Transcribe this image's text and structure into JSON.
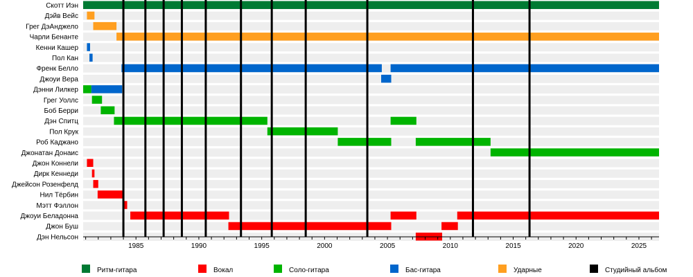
{
  "chart_data": {
    "type": "timeline",
    "title": "",
    "xlabel": "",
    "ylabel": "",
    "xlim": [
      1980.8,
      2026.6
    ],
    "x_ticks": [
      1985,
      1990,
      1995,
      2000,
      2005,
      2010,
      2015,
      2020,
      2025
    ],
    "grid": false,
    "legend_position": "bottom",
    "colors": {
      "rhythm": "#007a33",
      "vocals": "#ff0000",
      "lead": "#00b400",
      "bass": "#0066cc",
      "drums": "#ff9f20",
      "album": "#000000"
    },
    "legend": [
      {
        "key": "rhythm",
        "label": "Ритм-гитара"
      },
      {
        "key": "vocals",
        "label": "Вокал"
      },
      {
        "key": "lead",
        "label": "Соло-гитара"
      },
      {
        "key": "bass",
        "label": "Бас-гитара"
      },
      {
        "key": "drums",
        "label": "Ударные"
      },
      {
        "key": "album",
        "label": "Студийный альбом"
      }
    ],
    "albums": [
      1984.0,
      1985.75,
      1987.2,
      1988.65,
      1990.55,
      1993.35,
      1995.8,
      1998.5,
      2003.4,
      2011.8,
      2016.3
    ],
    "members": [
      {
        "name": "Скотт Иэн",
        "spans": [
          {
            "role": "rhythm",
            "from": 1980.8,
            "to": 2026.6
          }
        ]
      },
      {
        "name": "Дэйв Вейс",
        "spans": [
          {
            "role": "drums",
            "from": 1981.1,
            "to": 1981.7
          }
        ]
      },
      {
        "name": "Грег ДэАнджело",
        "spans": [
          {
            "role": "drums",
            "from": 1981.6,
            "to": 1983.45
          }
        ]
      },
      {
        "name": "Чарли Бенанте",
        "spans": [
          {
            "role": "drums",
            "from": 1983.45,
            "to": 2026.6
          }
        ]
      },
      {
        "name": "Кенни Кашер",
        "spans": [
          {
            "role": "bass",
            "from": 1981.1,
            "to": 1981.35
          }
        ]
      },
      {
        "name": "Пол Кан",
        "spans": [
          {
            "role": "bass",
            "from": 1981.3,
            "to": 1981.55
          }
        ]
      },
      {
        "name": "Френк Белло",
        "spans": [
          {
            "role": "bass",
            "from": 1983.85,
            "to": 2004.55
          },
          {
            "role": "bass",
            "from": 2005.25,
            "to": 2026.6
          }
        ]
      },
      {
        "name": "Джоуи Вера",
        "spans": [
          {
            "role": "bass",
            "from": 2004.5,
            "to": 2005.3
          }
        ]
      },
      {
        "name": "Дэнни Лилкер",
        "spans": [
          {
            "role": "lead",
            "from": 1980.8,
            "to": 1981.45
          },
          {
            "role": "bass",
            "from": 1981.45,
            "to": 1983.9
          }
        ]
      },
      {
        "name": "Грег Уоллс",
        "spans": [
          {
            "role": "lead",
            "from": 1981.5,
            "to": 1982.3
          }
        ]
      },
      {
        "name": "Боб Берри",
        "spans": [
          {
            "role": "lead",
            "from": 1982.2,
            "to": 1983.3
          }
        ]
      },
      {
        "name": "Дэн Спитц",
        "spans": [
          {
            "role": "lead",
            "from": 1983.25,
            "to": 1995.45
          },
          {
            "role": "lead",
            "from": 2005.25,
            "to": 2007.3
          }
        ]
      },
      {
        "name": "Пол Крук",
        "spans": [
          {
            "role": "lead",
            "from": 1995.45,
            "to": 2001.05
          }
        ]
      },
      {
        "name": "Роб Каджано",
        "spans": [
          {
            "role": "lead",
            "from": 2001.05,
            "to": 2005.3
          },
          {
            "role": "lead",
            "from": 2007.25,
            "to": 2013.2
          }
        ]
      },
      {
        "name": "Джонатан Донаис",
        "spans": [
          {
            "role": "lead",
            "from": 2013.2,
            "to": 2026.6
          }
        ]
      },
      {
        "name": "Джон Коннели",
        "spans": [
          {
            "role": "vocals",
            "from": 1981.1,
            "to": 1981.6
          }
        ]
      },
      {
        "name": "Дирк Кеннеди",
        "spans": [
          {
            "role": "vocals",
            "from": 1981.5,
            "to": 1981.7
          }
        ]
      },
      {
        "name": "Джейсон Розенфелд",
        "spans": [
          {
            "role": "vocals",
            "from": 1981.6,
            "to": 1982.0
          }
        ]
      },
      {
        "name": "Нил Тёрбин",
        "spans": [
          {
            "role": "vocals",
            "from": 1981.95,
            "to": 1984.0
          }
        ]
      },
      {
        "name": "Мэтт Фэллон",
        "spans": [
          {
            "role": "vocals",
            "from": 1983.95,
            "to": 1984.3
          }
        ]
      },
      {
        "name": "Джоуи Беладонна",
        "spans": [
          {
            "role": "vocals",
            "from": 1984.55,
            "to": 1992.4
          },
          {
            "role": "vocals",
            "from": 2005.25,
            "to": 2007.3
          },
          {
            "role": "vocals",
            "from": 2010.55,
            "to": 2026.6
          }
        ]
      },
      {
        "name": "Джон Буш",
        "spans": [
          {
            "role": "vocals",
            "from": 1992.35,
            "to": 2005.3
          },
          {
            "role": "vocals",
            "from": 2009.3,
            "to": 2010.6
          }
        ]
      },
      {
        "name": "Дэн Нельсон",
        "spans": [
          {
            "role": "vocals",
            "from": 2007.25,
            "to": 2009.35
          }
        ]
      }
    ]
  }
}
